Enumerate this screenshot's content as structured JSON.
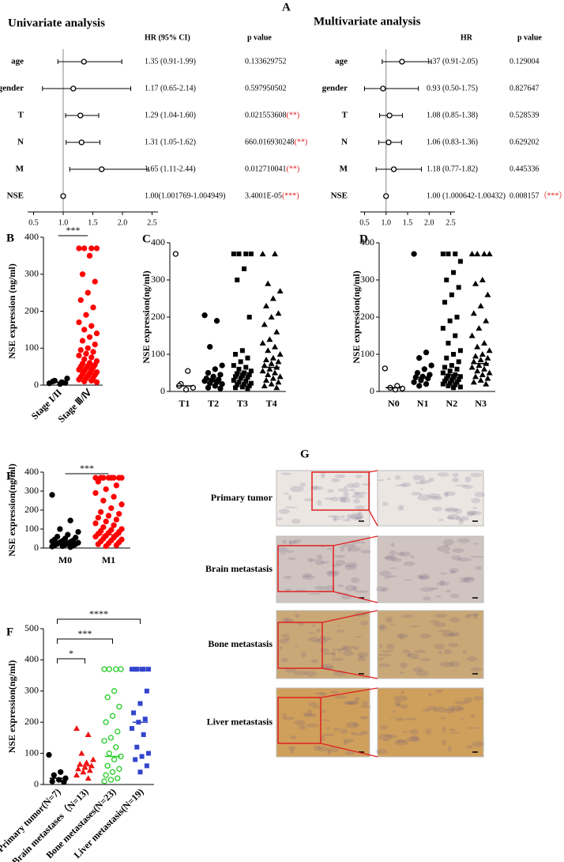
{
  "chart_data": [
    {
      "type": "forest",
      "panel_label": "A",
      "title": "Univariate analysis",
      "hr_header": "HR (95% CI)",
      "p_header": "p value",
      "categories": [
        "age",
        "gender",
        "T",
        "N",
        "M",
        "NSE"
      ],
      "values": [
        1.35,
        1.17,
        1.29,
        1.31,
        1.65,
        1.0
      ],
      "ci_low": [
        0.91,
        0.65,
        1.04,
        1.05,
        1.11,
        1.001769
      ],
      "ci_high": [
        1.99,
        2.14,
        1.6,
        1.62,
        2.44,
        1.004949
      ],
      "hr_labels": [
        "1.35 (0.91-1.99)",
        "1.17 (0.65-2.14)",
        "1.29 (1.04-1.60)",
        "1.31 (1.05-1.62)",
        "1.65 (1.11-2.44)",
        "1.00(1.001769-1.004949)"
      ],
      "p_labels": [
        "0.133629752",
        "0.597950502",
        "0.021553608",
        "660.016930248",
        "0.012710041",
        "3.4001E-05"
      ],
      "sig_labels": [
        null,
        null,
        "(**)",
        "(**)",
        "(**)",
        "(***)"
      ],
      "sig_color": "#e02020",
      "marker": "circle-open",
      "color": "#000000",
      "ref_x": 1,
      "xlim": [
        0.4,
        2.6
      ],
      "xticks": [
        0.5,
        {
          "value": 1,
          "label": "1.0"
        },
        1.5,
        {
          "value": 2,
          "label": "2.0"
        },
        2.5
      ]
    },
    {
      "type": "forest",
      "title": "Multivariate analysis",
      "hr_header": "HR",
      "p_header": "p value",
      "categories": [
        "age",
        "gender",
        "T",
        "N",
        "M",
        "NSE"
      ],
      "values": [
        1.37,
        0.93,
        1.08,
        1.06,
        1.18,
        1.0
      ],
      "ci_low": [
        0.91,
        0.5,
        0.85,
        0.83,
        0.77,
        1.000642
      ],
      "ci_high": [
        2.05,
        1.75,
        1.38,
        1.36,
        1.82,
        1.00432
      ],
      "hr_labels": [
        "1.37 (0.91-2.05)",
        "0.93 (0.50-1.75)",
        "1.08 (0.85-1.38)",
        "1.06 (0.83-1.36)",
        "1.18 (0.77-1.82)",
        "1.00 (1.000642-1.00432)"
      ],
      "p_labels": [
        "0.129004",
        "0.827647",
        "0.528539",
        "0.629202",
        "0.445336",
        "0.008157"
      ],
      "sig_labels": [
        null,
        null,
        null,
        null,
        null,
        "（***）"
      ],
      "sig_color": "#e02020",
      "marker": "circle-open",
      "color": "#000000",
      "ref_x": 1,
      "xlim": [
        0.4,
        2.6
      ],
      "xticks": [
        0.5,
        {
          "value": 1,
          "label": "1.0"
        },
        1.5,
        {
          "value": 2,
          "label": "2.0"
        },
        2.5
      ]
    },
    {
      "type": "dotplot",
      "panel_label": "B",
      "y_label": "NSE expression (ng/ml)",
      "rotate_xticks": true,
      "ylim": [
        0,
        400
      ],
      "yticks": [
        0,
        100,
        200,
        300,
        400
      ],
      "series": [
        {
          "name": "Stage I/II",
          "color": "#000000",
          "marker": "circle",
          "median": 8,
          "values": [
            5,
            8,
            12,
            18,
            3,
            10,
            6
          ]
        },
        {
          "name": "Stage Ⅲ/Ⅳ",
          "color": "#ff0000",
          "marker": "circle",
          "median": 55,
          "values": [
            370,
            370,
            370,
            370,
            350,
            300,
            280,
            250,
            230,
            210,
            190,
            170,
            160,
            150,
            140,
            130,
            120,
            110,
            100,
            95,
            90,
            85,
            80,
            75,
            70,
            65,
            60,
            58,
            55,
            52,
            50,
            48,
            45,
            42,
            40,
            38,
            35,
            32,
            30,
            28,
            25,
            22,
            20,
            18,
            15,
            12,
            10,
            8
          ]
        }
      ],
      "comparisons": [
        {
          "groups": [
            0,
            1
          ],
          "label": "***"
        }
      ]
    },
    {
      "type": "dotplot",
      "panel_label": "C",
      "y_label": "NSE expression(ng/ml)",
      "ylim": [
        0,
        400
      ],
      "yticks": [
        0,
        100,
        200,
        300,
        400
      ],
      "series": [
        {
          "name": "T1",
          "color": "#000000",
          "marker": "circle-open",
          "median": 15,
          "values": [
            370,
            55,
            20,
            10,
            5,
            15
          ]
        },
        {
          "name": "T2",
          "color": "#000000",
          "marker": "circle",
          "median": 32,
          "values": [
            205,
            190,
            120,
            70,
            60,
            50,
            45,
            40,
            35,
            32,
            30,
            28,
            25,
            22,
            20,
            15,
            10,
            8
          ]
        },
        {
          "name": "T3",
          "color": "#000000",
          "marker": "square",
          "median": 50,
          "values": [
            370,
            370,
            370,
            370,
            330,
            300,
            200,
            110,
            100,
            90,
            80,
            70,
            65,
            60,
            55,
            50,
            48,
            45,
            42,
            40,
            38,
            35,
            30,
            28,
            25,
            22,
            20,
            18,
            15,
            12,
            10,
            8
          ]
        },
        {
          "name": "T4",
          "color": "#000000",
          "marker": "triangle",
          "median": 65,
          "values": [
            370,
            370,
            290,
            270,
            250,
            230,
            210,
            200,
            180,
            160,
            140,
            130,
            120,
            110,
            100,
            90,
            85,
            80,
            75,
            70,
            65,
            60,
            55,
            50,
            45,
            40,
            35,
            30,
            25,
            20,
            15,
            10
          ]
        }
      ]
    },
    {
      "type": "dotplot",
      "panel_label": "D",
      "y_label": "NSE expression(ng/ml)",
      "ylim": [
        0,
        400
      ],
      "yticks": [
        0,
        100,
        200,
        300,
        400
      ],
      "series": [
        {
          "name": "N0",
          "color": "#000000",
          "marker": "circle-open",
          "median": 10,
          "values": [
            62,
            15,
            10,
            8,
            5
          ]
        },
        {
          "name": "N1",
          "color": "#000000",
          "marker": "circle",
          "median": 38,
          "values": [
            370,
            105,
            90,
            70,
            60,
            50,
            45,
            40,
            38,
            35,
            30,
            25,
            20,
            15
          ]
        },
        {
          "name": "N2",
          "color": "#000000",
          "marker": "square",
          "median": 45,
          "values": [
            370,
            370,
            370,
            350,
            320,
            300,
            280,
            260,
            240,
            200,
            190,
            170,
            150,
            130,
            110,
            100,
            90,
            80,
            70,
            65,
            60,
            55,
            50,
            45,
            42,
            40,
            38,
            35,
            32,
            30,
            28,
            25,
            22,
            20,
            18,
            15,
            12,
            10
          ]
        },
        {
          "name": "N3",
          "color": "#000000",
          "marker": "triangle",
          "median": 75,
          "values": [
            370,
            370,
            370,
            370,
            300,
            290,
            260,
            230,
            210,
            190,
            170,
            150,
            130,
            120,
            110,
            100,
            95,
            90,
            85,
            80,
            75,
            70,
            65,
            60,
            55,
            50,
            45,
            40,
            35,
            30,
            25,
            20
          ]
        }
      ]
    },
    {
      "type": "dotplot",
      "panel_label": "E",
      "y_label": "NSE expression(ng/ml)",
      "ylim": [
        0,
        400
      ],
      "yticks": [
        0,
        100,
        200,
        300,
        400
      ],
      "series": [
        {
          "name": "M0",
          "color": "#000000",
          "marker": "circle",
          "median": 25,
          "values": [
            280,
            145,
            100,
            85,
            70,
            60,
            55,
            50,
            45,
            40,
            38,
            35,
            32,
            30,
            28,
            25,
            22,
            20,
            18,
            15,
            12,
            10,
            8,
            5
          ]
        },
        {
          "name": "M1",
          "color": "#ff0000",
          "marker": "circle",
          "median": 70,
          "values": [
            370,
            370,
            370,
            370,
            370,
            370,
            370,
            370,
            350,
            330,
            310,
            290,
            270,
            250,
            230,
            210,
            190,
            180,
            170,
            160,
            150,
            140,
            130,
            120,
            110,
            100,
            95,
            90,
            85,
            80,
            75,
            70,
            65,
            60,
            55,
            50,
            45,
            40,
            35,
            30,
            25,
            20,
            15,
            10
          ]
        }
      ],
      "comparisons": [
        {
          "groups": [
            0,
            1
          ],
          "label": "***"
        }
      ]
    },
    {
      "type": "dotplot",
      "panel_label": "F",
      "y_label": "NSE expression(ng/ml)",
      "rotate_xticks": true,
      "ylim": [
        0,
        500
      ],
      "yticks": [
        0,
        100,
        200,
        300,
        400,
        500
      ],
      "series": [
        {
          "name": "Primary tumor(N=7)",
          "color": "#000000",
          "marker": "circle",
          "median": 20,
          "values": [
            95,
            40,
            30,
            20,
            15,
            10,
            8
          ]
        },
        {
          "name": "Brain metastases（N=13)",
          "color": "#ee1111",
          "marker": "triangle",
          "median": 60,
          "values": [
            180,
            160,
            100,
            80,
            70,
            65,
            60,
            55,
            50,
            45,
            40,
            30,
            20
          ]
        },
        {
          "name": "Bone metastases(N=23)",
          "color": "#22cc22",
          "marker": "circle-open",
          "median": 90,
          "values": [
            370,
            370,
            370,
            370,
            300,
            280,
            250,
            220,
            200,
            170,
            150,
            140,
            120,
            100,
            90,
            80,
            60,
            50,
            40,
            30,
            20,
            15,
            10
          ]
        },
        {
          "name": "Liver metastasis(N=19)",
          "color": "#3344cc",
          "marker": "square",
          "median": 200,
          "values": [
            370,
            370,
            370,
            370,
            370,
            370,
            300,
            260,
            230,
            210,
            200,
            180,
            160,
            120,
            100,
            90,
            80,
            60,
            40
          ]
        }
      ],
      "comparisons": [
        {
          "groups": [
            0,
            1
          ],
          "label": "*"
        },
        {
          "groups": [
            0,
            2
          ],
          "label": "***"
        },
        {
          "groups": [
            0,
            3
          ],
          "label": "****"
        }
      ]
    },
    {
      "type": "image_grid",
      "panel_label": "G",
      "rows": [
        "Primary tumor",
        "Brain metastasis",
        "Bone metastasis",
        "Liver metastasis"
      ],
      "tints": [
        "#ebe6e2",
        "#cfc4bf",
        "#c9a877",
        "#cf9f5c"
      ],
      "zoom_color": "#e02020"
    }
  ]
}
